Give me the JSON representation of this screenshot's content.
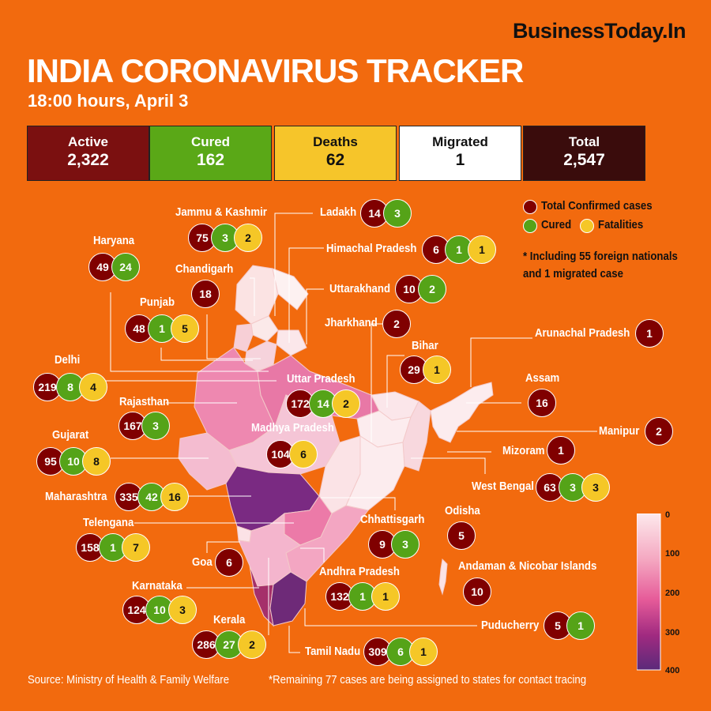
{
  "brand": "BusinessToday.In",
  "title": "INDIA CORONAVIRUS TRACKER",
  "subtitle": "18:00 hours, April 3",
  "summary": [
    {
      "label": "Active",
      "value": "2,322",
      "bg": "#7b1010",
      "fg": "#ffffff"
    },
    {
      "label": "Cured",
      "value": "162",
      "bg": "#5aa817",
      "fg": "#ffffff"
    },
    {
      "label": "Deaths",
      "value": "62",
      "bg": "#f6c52a",
      "fg": "#111111"
    },
    {
      "label": "Migrated",
      "value": "1",
      "bg": "#ffffff",
      "fg": "#111111"
    },
    {
      "label": "Total",
      "value": "2,547",
      "bg": "#3a0c0c",
      "fg": "#ffffff"
    }
  ],
  "legend": {
    "confirmed": "Total Confirmed cases",
    "cured": "Cured",
    "fatalities": "Fatalities",
    "note": "* Including 55 foreign nationals and 1 migrated case"
  },
  "colors": {
    "background": "#f26a0e",
    "confirmed": "#800000",
    "cured": "#55a318",
    "fatalities": "#f5c727"
  },
  "scale": {
    "labels": [
      "0",
      "100",
      "200",
      "300",
      "400"
    ],
    "min": 0,
    "max": 400
  },
  "states": [
    {
      "name": "Jammu & Kashmir",
      "confirmed": "75",
      "cured": "3",
      "fatalities": "2"
    },
    {
      "name": "Ladakh",
      "confirmed": "14",
      "cured": "3"
    },
    {
      "name": "Himachal Pradesh",
      "confirmed": "6",
      "cured": "1",
      "fatalities": "1"
    },
    {
      "name": "Haryana",
      "confirmed": "49",
      "cured": "24"
    },
    {
      "name": "Chandigarh",
      "confirmed": "18"
    },
    {
      "name": "Uttarakhand",
      "confirmed": "10",
      "cured": "2"
    },
    {
      "name": "Punjab",
      "confirmed": "48",
      "cured": "1",
      "fatalities": "5"
    },
    {
      "name": "Jharkhand",
      "confirmed": "2"
    },
    {
      "name": "Arunachal Pradesh",
      "confirmed": "1"
    },
    {
      "name": "Bihar",
      "confirmed": "29",
      "fatalities": "1"
    },
    {
      "name": "Delhi",
      "confirmed": "219",
      "cured": "8",
      "fatalities": "4"
    },
    {
      "name": "Uttar Pradesh",
      "confirmed": "172",
      "cured": "14",
      "fatalities": "2"
    },
    {
      "name": "Assam",
      "confirmed": "16"
    },
    {
      "name": "Rajasthan",
      "confirmed": "167",
      "cured": "3"
    },
    {
      "name": "Madhya Pradesh",
      "confirmed": "104",
      "fatalities": "6"
    },
    {
      "name": "Manipur",
      "confirmed": "2"
    },
    {
      "name": "Gujarat",
      "confirmed": "95",
      "cured": "10",
      "fatalities": "8"
    },
    {
      "name": "Mizoram",
      "confirmed": "1"
    },
    {
      "name": "West Bengal",
      "confirmed": "63",
      "cured": "3",
      "fatalities": "3"
    },
    {
      "name": "Maharashtra",
      "confirmed": "335",
      "cured": "42",
      "fatalities": "16"
    },
    {
      "name": "Odisha",
      "confirmed": "5"
    },
    {
      "name": "Chhattisgarh",
      "confirmed": "9",
      "cured": "3"
    },
    {
      "name": "Telengana",
      "confirmed": "158",
      "cured": "1",
      "fatalities": "7"
    },
    {
      "name": "Goa",
      "confirmed": "6"
    },
    {
      "name": "Andaman & Nicobar Islands",
      "confirmed": "10"
    },
    {
      "name": "Andhra Pradesh",
      "confirmed": "132",
      "cured": "1",
      "fatalities": "1"
    },
    {
      "name": "Karnataka",
      "confirmed": "124",
      "cured": "10",
      "fatalities": "3"
    },
    {
      "name": "Puducherry",
      "confirmed": "5",
      "cured": "1"
    },
    {
      "name": "Kerala",
      "confirmed": "286",
      "cured": "27",
      "fatalities": "2"
    },
    {
      "name": "Tamil Nadu",
      "confirmed": "309",
      "cured": "6",
      "fatalities": "1"
    }
  ],
  "footer": {
    "source": "Source: Ministry of Health & Family Welfare",
    "remaining": "*Remaining 77 cases are being assigned to states for contact tracing"
  }
}
